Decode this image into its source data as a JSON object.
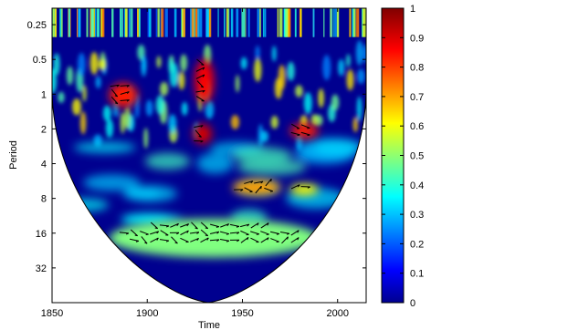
{
  "chart_data": {
    "type": "heatmap",
    "title": "",
    "xlabel": "Time",
    "ylabel": "Period",
    "x_range": [
      1850,
      2015
    ],
    "x_ticks": [
      1850,
      1900,
      1950,
      2000
    ],
    "y_scale": "log2",
    "y_range": [
      0.18,
      64
    ],
    "y_ticks": [
      0.25,
      0.5,
      1,
      2,
      4,
      8,
      16,
      32
    ],
    "y_tick_labels": [
      "0.25",
      "0.5",
      "1",
      "2",
      "4",
      "8",
      "16",
      "32"
    ],
    "colorbar": {
      "range": [
        0,
        1
      ],
      "ticks": [
        0,
        0.1,
        0.2,
        0.3,
        0.4,
        0.5,
        0.6,
        0.7,
        0.8,
        0.9,
        1
      ],
      "tick_labels": [
        "0",
        "0.1",
        "0.2",
        "0.3",
        "0.4",
        "0.5",
        "0.6",
        "0.7",
        "0.8",
        "0.9",
        "1"
      ],
      "colormap": "jet"
    },
    "regions": [
      {
        "x0": 1885,
        "x1": 1985,
        "p0": 13,
        "p1": 21,
        "value": 0.92
      },
      {
        "x0": 1880,
        "x1": 1990,
        "p0": 12,
        "p1": 26,
        "value": 0.5
      },
      {
        "x0": 1945,
        "x1": 1970,
        "p0": 5.5,
        "p1": 7.5,
        "value": 0.72
      },
      {
        "x0": 1975,
        "x1": 1990,
        "p0": 6,
        "p1": 7.5,
        "value": 0.62
      },
      {
        "x0": 1924,
        "x1": 1934,
        "p0": 1.8,
        "p1": 2.7,
        "value": 0.92
      },
      {
        "x0": 1975,
        "x1": 1990,
        "p0": 1.8,
        "p1": 2.4,
        "value": 0.85
      },
      {
        "x0": 1880,
        "x1": 1895,
        "p0": 0.8,
        "p1": 1.3,
        "value": 0.85
      },
      {
        "x0": 1925,
        "x1": 1935,
        "p0": 0.5,
        "p1": 1.2,
        "value": 0.88
      }
    ],
    "cone_of_influence": {
      "left_edge": 1850,
      "right_edge": 2015,
      "center": 1932,
      "max_period": 64
    },
    "phase_arrows": {
      "style": "black arrows on significant regions"
    },
    "colors": {
      "background": "#00008f",
      "outline": "#000000"
    }
  }
}
